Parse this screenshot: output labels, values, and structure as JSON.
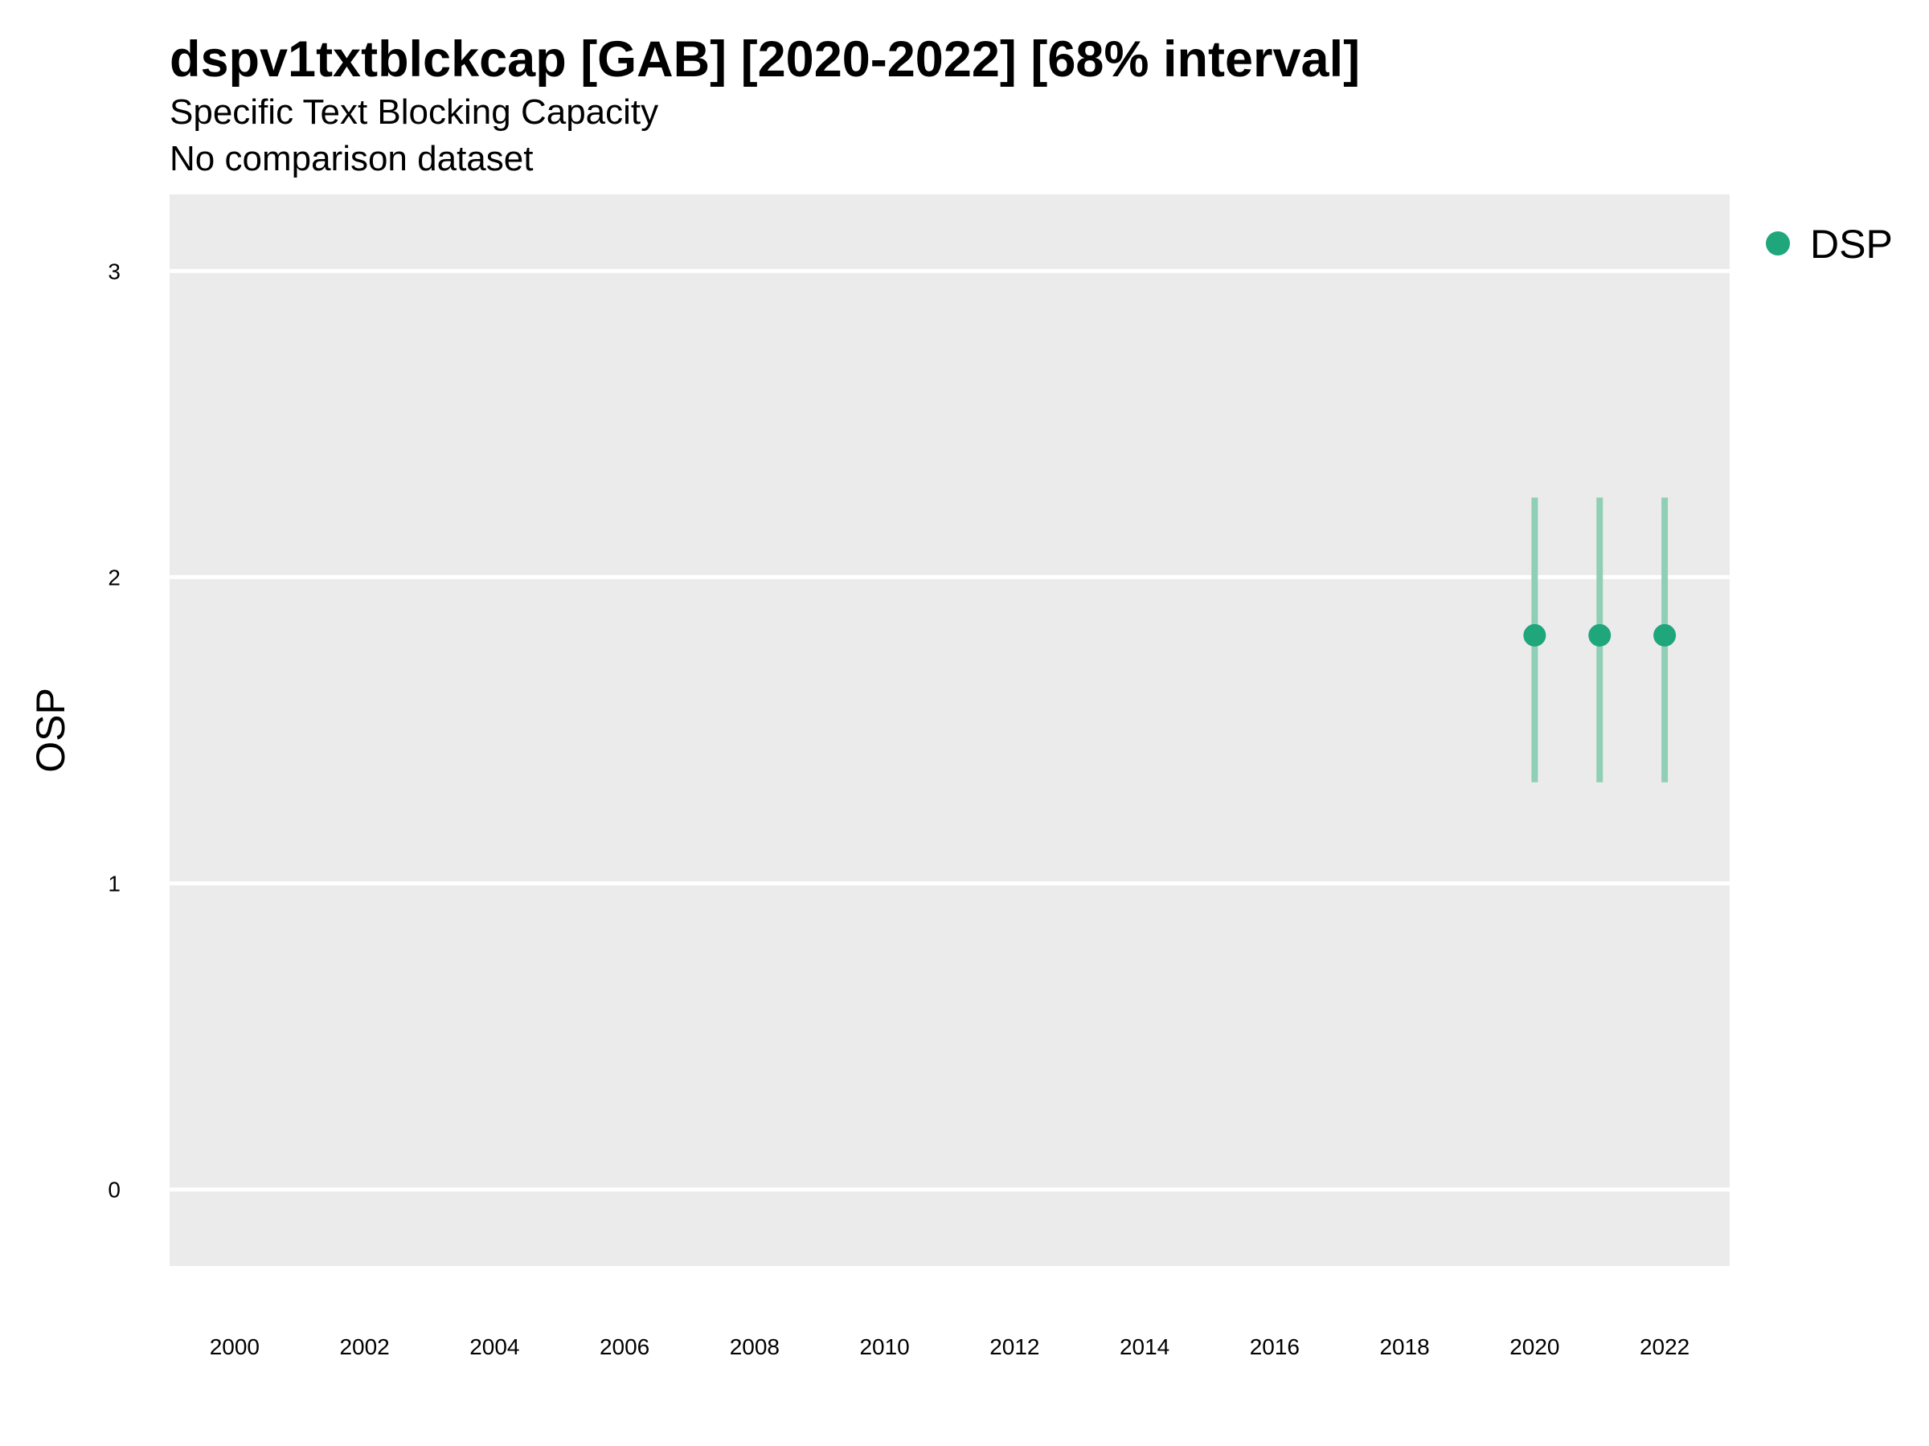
{
  "header": {
    "title": "dspv1txtblckcap [GAB] [2020-2022] [68% interval]",
    "subtitle": "Specific Text Blocking Capacity",
    "comparison_note": "No comparison dataset"
  },
  "colors": {
    "panel_background": "#EBEBEB",
    "gridline": "#FFFFFF",
    "series_dsp": "#1FA67A",
    "interval_dsp": "#8FCFB6"
  },
  "chart_data": {
    "type": "scatter",
    "title": "dspv1txtblckcap [GAB] [2020-2022] [68% interval]",
    "subtitle": "Specific Text Blocking Capacity",
    "xlabel": "",
    "ylabel": "OSP",
    "x_ticks": [
      2000,
      2002,
      2004,
      2006,
      2008,
      2010,
      2012,
      2014,
      2016,
      2018,
      2020,
      2022
    ],
    "y_ticks": [
      0,
      1,
      2,
      3
    ],
    "xlim": [
      1999,
      2023
    ],
    "ylim": [
      -0.25,
      3.25
    ],
    "grid": true,
    "legend_position": "top-right",
    "series": [
      {
        "name": "DSP",
        "x": [
          2020,
          2021,
          2022
        ],
        "y": [
          1.81,
          1.81,
          1.81
        ],
        "lower": [
          1.33,
          1.33,
          1.33
        ],
        "upper": [
          2.26,
          2.26,
          2.26
        ]
      }
    ]
  }
}
